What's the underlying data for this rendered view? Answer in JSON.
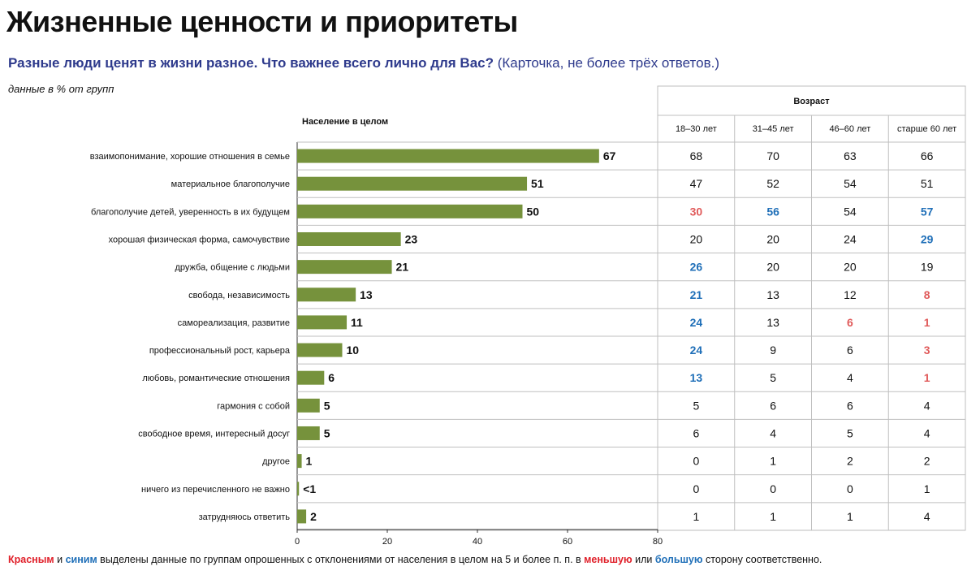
{
  "header": {
    "title": "Жизненные ценности и приоритеты",
    "question": "Разные люди ценят в жизни разное. Что важнее всего лично для Вас?",
    "question_note": "(Карточка, не более трёх ответов.)",
    "unit_note": "данные в % от групп"
  },
  "footnote": {
    "red_word": "Красным",
    "and_word": " и ",
    "blue_word": "синим",
    "middle_text": " выделены данные по группам опрошенных с отклонениями от населения в целом на 5 и более п. п. в ",
    "lesser_word": "меньшую",
    "or_word": " или ",
    "greater_word": "большую",
    "end_text": " сторону соответственно."
  },
  "colors": {
    "bar": "#76923c",
    "highlight_lower": "#e05a5a",
    "highlight_higher": "#1f6fb8",
    "grid": "#bfbfbf",
    "subtitle": "#2e3a8c"
  },
  "chart_data": {
    "type": "bar",
    "orientation": "horizontal",
    "series_label": "Население в целом",
    "categories": [
      "взаимопонимание, хорошие отношения в семье",
      "материальное благополучие",
      "благополучие детей, уверенность в их будущем",
      "хорошая физическая форма, самочувствие",
      "дружба, общение с людьми",
      "свобода, независимость",
      "самореализация, развитие",
      "профессиональный рост, карьера",
      "любовь, романтические отношения",
      "гармония с собой",
      "свободное время, интересный досуг",
      "другое",
      "ничего из перечисленного не важно",
      "затрудняюсь ответить"
    ],
    "values": [
      67,
      51,
      50,
      23,
      21,
      13,
      11,
      10,
      6,
      5,
      5,
      1,
      0.4,
      2
    ],
    "value_labels": [
      "67",
      "51",
      "50",
      "23",
      "21",
      "13",
      "11",
      "10",
      "6",
      "5",
      "5",
      "1",
      "<1",
      "2"
    ],
    "xlim": [
      0,
      80
    ],
    "xticks": [
      0,
      20,
      40,
      60,
      80
    ],
    "table": {
      "group_header": "Возраст",
      "columns": [
        "18–30 лет",
        "31–45 лет",
        "46–60 лет",
        "старше 60 лет"
      ],
      "rows": [
        [
          68,
          70,
          63,
          66
        ],
        [
          47,
          52,
          54,
          51
        ],
        [
          30,
          56,
          54,
          57
        ],
        [
          20,
          20,
          24,
          29
        ],
        [
          26,
          20,
          20,
          19
        ],
        [
          21,
          13,
          12,
          8
        ],
        [
          24,
          13,
          6,
          1
        ],
        [
          24,
          9,
          6,
          3
        ],
        [
          13,
          5,
          4,
          1
        ],
        [
          5,
          6,
          6,
          4
        ],
        [
          6,
          4,
          5,
          4
        ],
        [
          0,
          1,
          2,
          2
        ],
        [
          0,
          0,
          0,
          1
        ],
        [
          1,
          1,
          1,
          4
        ]
      ],
      "highlights": [
        [
          "",
          "",
          "",
          ""
        ],
        [
          "",
          "",
          "",
          ""
        ],
        [
          "lower",
          "higher",
          "",
          "higher"
        ],
        [
          "",
          "",
          "",
          "higher"
        ],
        [
          "higher",
          "",
          "",
          ""
        ],
        [
          "higher",
          "",
          "",
          "lower"
        ],
        [
          "higher",
          "",
          "lower",
          "lower"
        ],
        [
          "higher",
          "",
          "",
          "lower"
        ],
        [
          "higher",
          "",
          "",
          "lower"
        ],
        [
          "",
          "",
          "",
          ""
        ],
        [
          "",
          "",
          "",
          ""
        ],
        [
          "",
          "",
          "",
          ""
        ],
        [
          "",
          "",
          "",
          ""
        ],
        [
          "",
          "",
          "",
          ""
        ]
      ]
    }
  }
}
